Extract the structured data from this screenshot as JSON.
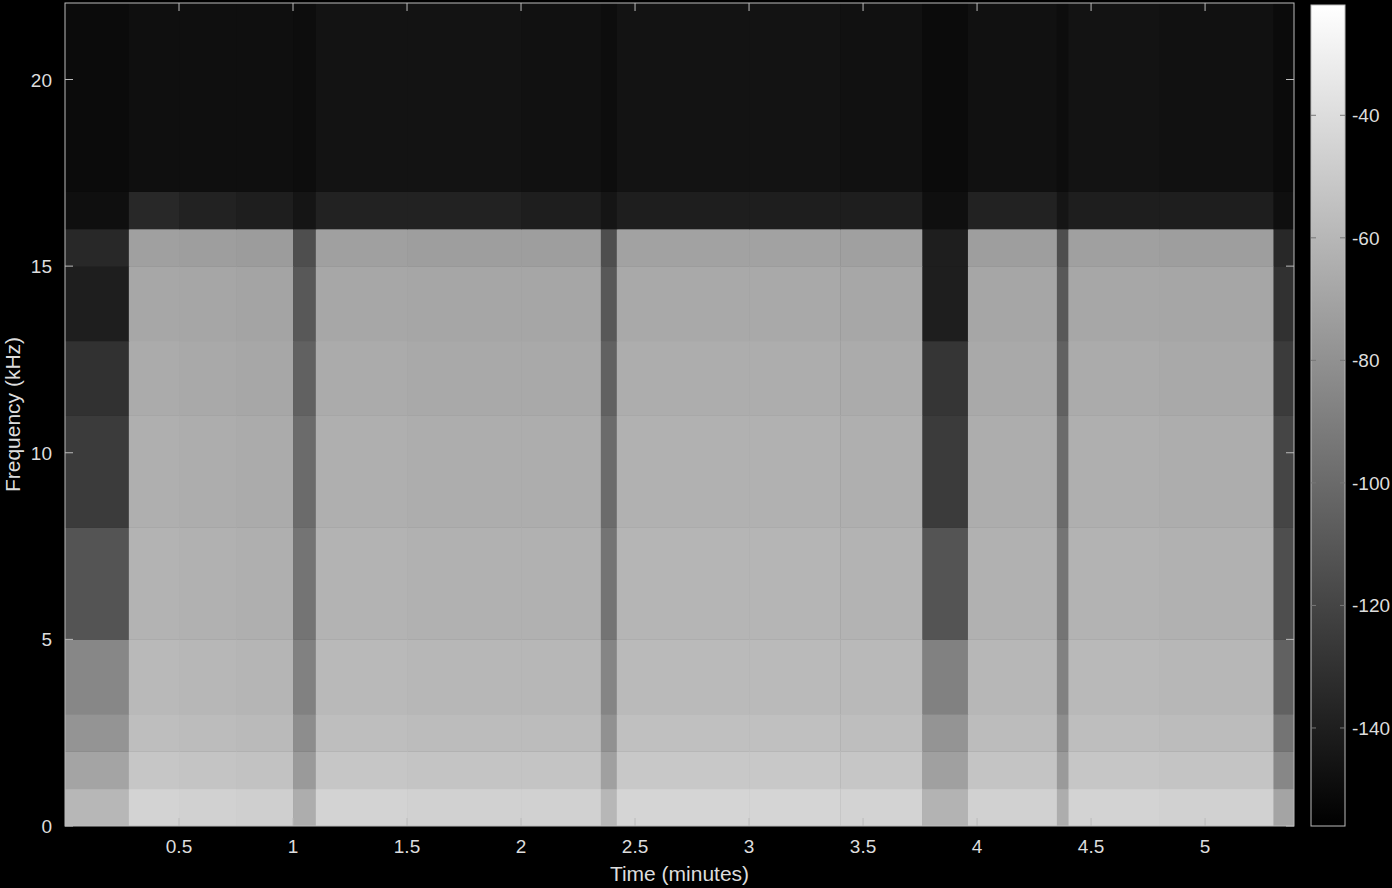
{
  "chart_data": {
    "type": "heatmap",
    "xlabel": "Time (minutes)",
    "ylabel": "Frequency (kHz)",
    "x": [
      0,
      0.28,
      0.5,
      0.75,
      1.0,
      1.1,
      1.5,
      2.0,
      2.35,
      2.42,
      3.0,
      3.4,
      3.76,
      3.96,
      4.35,
      4.4,
      4.8,
      5.3,
      5.39
    ],
    "y": [
      0,
      1,
      2,
      3,
      5,
      8,
      11,
      13,
      15,
      16,
      17,
      22.05
    ],
    "z": [
      [
        -60,
        -45,
        -46,
        -47,
        -65,
        -45,
        -46,
        -46,
        -60,
        -44,
        -44,
        -45,
        -62,
        -46,
        -65,
        -45,
        -46,
        -70
      ],
      [
        -70,
        -52,
        -53,
        -54,
        -75,
        -52,
        -53,
        -53,
        -72,
        -51,
        -51,
        -52,
        -72,
        -53,
        -75,
        -52,
        -53,
        -85
      ],
      [
        -78,
        -56,
        -57,
        -58,
        -82,
        -56,
        -57,
        -57,
        -80,
        -55,
        -55,
        -56,
        -78,
        -57,
        -82,
        -56,
        -57,
        -95
      ],
      [
        -85,
        -59,
        -60,
        -61,
        -88,
        -59,
        -60,
        -60,
        -86,
        -58,
        -58,
        -59,
        -88,
        -60,
        -88,
        -59,
        -60,
        -105
      ],
      [
        -112,
        -62,
        -63,
        -64,
        -95,
        -62,
        -63,
        -63,
        -95,
        -61,
        -61,
        -62,
        -112,
        -63,
        -95,
        -62,
        -63,
        -115
      ],
      [
        -125,
        -64,
        -65,
        -66,
        -100,
        -64,
        -65,
        -65,
        -100,
        -63,
        -63,
        -64,
        -125,
        -65,
        -100,
        -64,
        -65,
        -120
      ],
      [
        -130,
        -66,
        -67,
        -68,
        -105,
        -66,
        -67,
        -67,
        -105,
        -65,
        -65,
        -66,
        -128,
        -67,
        -105,
        -66,
        -67,
        -125
      ],
      [
        -140,
        -68,
        -69,
        -70,
        -110,
        -68,
        -69,
        -69,
        -110,
        -67,
        -67,
        -68,
        -140,
        -69,
        -110,
        -68,
        -69,
        -130
      ],
      [
        -135,
        -72,
        -73,
        -74,
        -115,
        -72,
        -73,
        -73,
        -115,
        -71,
        -71,
        -72,
        -140,
        -73,
        -115,
        -72,
        -73,
        -135
      ],
      [
        -148,
        -135,
        -138,
        -140,
        -145,
        -138,
        -138,
        -140,
        -145,
        -140,
        -140,
        -140,
        -148,
        -138,
        -145,
        -140,
        -140,
        -148
      ],
      [
        -150,
        -148,
        -148,
        -148,
        -149,
        -146,
        -146,
        -147,
        -149,
        -146,
        -146,
        -147,
        -150,
        -147,
        -149,
        -146,
        -147,
        -150
      ]
    ],
    "xlim": [
      0,
      5.39
    ],
    "ylim": [
      0,
      22.05
    ],
    "xticks": [
      0.5,
      1,
      1.5,
      2,
      2.5,
      3,
      3.5,
      4,
      4.5,
      5
    ],
    "yticks": [
      0,
      5,
      10,
      15,
      20
    ],
    "colorbar_range": [
      -156,
      -22
    ],
    "colorbar_ticks": [
      -140,
      -120,
      -100,
      -80,
      -60,
      -40
    ]
  }
}
